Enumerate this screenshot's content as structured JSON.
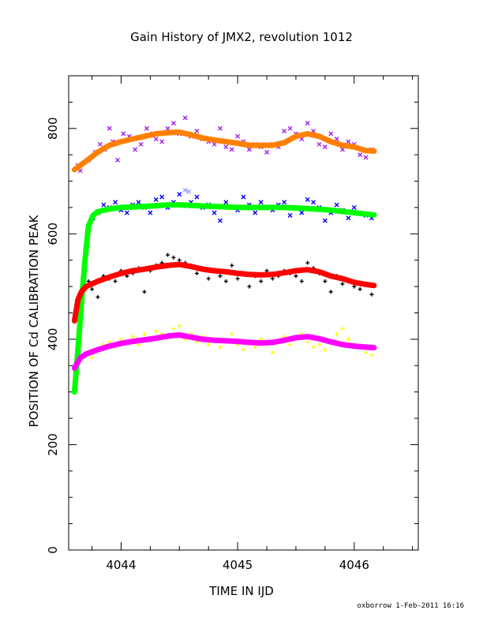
{
  "chart_data": {
    "type": "scatter",
    "title": "Gain History of JMX2, revolution 1012",
    "xlabel": "TIME IN IJD",
    "ylabel": "POSITION OF Cd CALIBRATION PEAK",
    "xlim": [
      4043.55,
      4046.55
    ],
    "ylim": [
      0,
      900
    ],
    "xticks": [
      4044,
      4045,
      4046
    ],
    "yticks": [
      0,
      200,
      400,
      600,
      800
    ],
    "grid": false,
    "footer": "oxborrow  1-Feb-2011 16:16",
    "series": [
      {
        "kind": "points",
        "color": "#a020f0",
        "marker": "x",
        "x": [
          4043.63,
          4043.65,
          4043.72,
          4043.78,
          4043.82,
          4043.86,
          4043.9,
          4043.93,
          4043.97,
          4044.02,
          4044.07,
          4044.12,
          4044.17,
          4044.22,
          4044.27,
          4044.3,
          4044.35,
          4044.4,
          4044.45,
          4044.5,
          4044.55,
          4044.6,
          4044.65,
          4044.7,
          4044.75,
          4044.8,
          4044.85,
          4044.9,
          4044.95,
          4045.0,
          4045.05,
          4045.1,
          4045.15,
          4045.2,
          4045.25,
          4045.3,
          4045.35,
          4045.4,
          4045.45,
          4045.5,
          4045.55,
          4045.6,
          4045.65,
          4045.7,
          4045.75,
          4045.8,
          4045.85,
          4045.9,
          4045.95,
          4046.0,
          4046.05,
          4046.1,
          4046.15
        ],
        "y": [
          730,
          720,
          740,
          755,
          770,
          760,
          800,
          775,
          740,
          790,
          785,
          760,
          770,
          800,
          790,
          780,
          775,
          800,
          810,
          790,
          820,
          785,
          795,
          780,
          775,
          770,
          800,
          765,
          760,
          785,
          775,
          760,
          770,
          765,
          755,
          770,
          765,
          795,
          800,
          790,
          780,
          810,
          795,
          770,
          765,
          790,
          780,
          760,
          775,
          770,
          750,
          745,
          760
        ]
      },
      {
        "kind": "points",
        "color": "#0000ff",
        "marker": "x",
        "x": [
          4043.72,
          4043.76,
          4043.8,
          4043.85,
          4043.9,
          4043.95,
          4044.0,
          4044.05,
          4044.1,
          4044.15,
          4044.2,
          4044.25,
          4044.3,
          4044.35,
          4044.4,
          4044.45,
          4044.5,
          4044.55,
          4044.6,
          4044.65,
          4044.7,
          4044.75,
          4044.8,
          4044.85,
          4044.9,
          4044.95,
          4045.0,
          4045.05,
          4045.1,
          4045.15,
          4045.2,
          4045.25,
          4045.3,
          4045.35,
          4045.4,
          4045.45,
          4045.5,
          4045.55,
          4045.6,
          4045.65,
          4045.7,
          4045.75,
          4045.8,
          4045.85,
          4045.9,
          4045.95,
          4046.0,
          4046.05,
          4046.1,
          4046.15
        ],
        "y": [
          615,
          630,
          640,
          655,
          650,
          660,
          645,
          640,
          655,
          660,
          650,
          640,
          665,
          670,
          650,
          660,
          675,
          655,
          660,
          670,
          650,
          655,
          640,
          625,
          660,
          650,
          645,
          670,
          655,
          640,
          660,
          650,
          645,
          655,
          660,
          635,
          650,
          640,
          665,
          660,
          650,
          625,
          640,
          655,
          645,
          630,
          650,
          640,
          635,
          630
        ]
      },
      {
        "kind": "points",
        "color": "#000000",
        "marker": "+",
        "x": [
          4043.64,
          4043.66,
          4043.68,
          4043.72,
          4043.75,
          4043.8,
          4043.85,
          4043.9,
          4043.95,
          4044.0,
          4044.05,
          4044.1,
          4044.15,
          4044.2,
          4044.25,
          4044.3,
          4044.35,
          4044.4,
          4044.45,
          4044.5,
          4044.55,
          4044.6,
          4044.65,
          4044.7,
          4044.75,
          4044.8,
          4044.85,
          4044.9,
          4044.95,
          4045.0,
          4045.05,
          4045.1,
          4045.15,
          4045.2,
          4045.25,
          4045.3,
          4045.35,
          4045.4,
          4045.45,
          4045.5,
          4045.55,
          4045.6,
          4045.65,
          4045.7,
          4045.75,
          4045.8,
          4045.85,
          4045.9,
          4045.95,
          4046.0,
          4046.05,
          4046.1,
          4046.15
        ],
        "y": [
          460,
          490,
          500,
          510,
          495,
          480,
          520,
          515,
          510,
          530,
          520,
          525,
          535,
          490,
          530,
          540,
          545,
          560,
          555,
          550,
          545,
          540,
          525,
          535,
          515,
          530,
          520,
          510,
          540,
          515,
          525,
          500,
          520,
          510,
          530,
          515,
          520,
          530,
          525,
          520,
          510,
          545,
          535,
          525,
          510,
          490,
          520,
          505,
          510,
          500,
          495,
          505,
          485
        ]
      },
      {
        "kind": "points",
        "color": "#ffff00",
        "marker": "+",
        "x": [
          4043.65,
          4043.7,
          4043.75,
          4043.8,
          4043.85,
          4043.9,
          4043.95,
          4044.0,
          4044.05,
          4044.1,
          4044.15,
          4044.2,
          4044.25,
          4044.3,
          4044.35,
          4044.4,
          4044.45,
          4044.5,
          4044.55,
          4044.6,
          4044.65,
          4044.7,
          4044.75,
          4044.8,
          4044.85,
          4044.9,
          4044.95,
          4045.0,
          4045.05,
          4045.1,
          4045.15,
          4045.2,
          4045.25,
          4045.3,
          4045.35,
          4045.4,
          4045.45,
          4045.5,
          4045.55,
          4045.6,
          4045.65,
          4045.7,
          4045.75,
          4045.8,
          4045.85,
          4045.9,
          4045.95,
          4046.0,
          4046.05,
          4046.1,
          4046.15
        ],
        "y": [
          360,
          375,
          365,
          380,
          390,
          395,
          385,
          400,
          395,
          405,
          390,
          410,
          400,
          415,
          410,
          405,
          420,
          425,
          400,
          410,
          395,
          405,
          390,
          400,
          385,
          395,
          410,
          390,
          380,
          395,
          385,
          400,
          390,
          375,
          395,
          405,
          390,
          400,
          410,
          395,
          385,
          390,
          380,
          395,
          410,
          420,
          400,
          390,
          385,
          375,
          370
        ]
      },
      {
        "kind": "points",
        "color": "#00ff00",
        "marker": "+",
        "x": [
          4043.615,
          4043.625,
          4043.635,
          4043.645,
          4043.655,
          4043.665,
          4043.675,
          4043.685,
          4043.695,
          4043.705,
          4043.715,
          4043.725
        ],
        "y": [
          305,
          340,
          380,
          420,
          455,
          490,
          520,
          550,
          575,
          595,
          610,
          620
        ]
      },
      {
        "kind": "points",
        "color": "#a0a0ff",
        "marker": "x",
        "x": [
          4044.55,
          4044.58
        ],
        "y": [
          683,
          680
        ]
      },
      {
        "kind": "curve",
        "color": "#ff8000",
        "x": [
          4043.6,
          4043.7,
          4043.8,
          4043.9,
          4044.0,
          4044.1,
          4044.2,
          4044.3,
          4044.4,
          4044.5,
          4044.6,
          4044.7,
          4044.8,
          4044.9,
          4045.0,
          4045.1,
          4045.2,
          4045.3,
          4045.4,
          4045.5,
          4045.6,
          4045.7,
          4045.8,
          4045.9,
          4046.0,
          4046.1,
          4046.17
        ],
        "y": [
          722,
          738,
          755,
          768,
          775,
          780,
          785,
          790,
          792,
          793,
          788,
          782,
          778,
          775,
          772,
          768,
          768,
          768,
          773,
          785,
          790,
          785,
          775,
          768,
          765,
          758,
          757
        ]
      },
      {
        "kind": "curve",
        "color": "#00ff00",
        "x": [
          4043.6,
          4043.63,
          4043.66,
          4043.69,
          4043.72,
          4043.76,
          4043.8,
          4043.9,
          4044.0,
          4044.2,
          4044.4,
          4044.5,
          4044.6,
          4044.8,
          4045.0,
          4045.2,
          4045.4,
          4045.6,
          4045.8,
          4046.0,
          4046.17
        ],
        "y": [
          300,
          380,
          470,
          550,
          615,
          635,
          642,
          647,
          650,
          652,
          655,
          655,
          654,
          652,
          650,
          650,
          650,
          648,
          645,
          640,
          636
        ]
      },
      {
        "kind": "curve",
        "color": "#ff0000",
        "x": [
          4043.6,
          4043.63,
          4043.66,
          4043.7,
          4043.8,
          4043.9,
          4044.0,
          4044.1,
          4044.2,
          4044.3,
          4044.4,
          4044.5,
          4044.6,
          4044.7,
          4044.8,
          4044.9,
          4045.0,
          4045.1,
          4045.2,
          4045.3,
          4045.4,
          4045.5,
          4045.6,
          4045.7,
          4045.8,
          4045.9,
          4046.0,
          4046.1,
          4046.17
        ],
        "y": [
          435,
          475,
          490,
          500,
          510,
          518,
          525,
          530,
          533,
          537,
          540,
          542,
          538,
          533,
          530,
          528,
          525,
          523,
          522,
          523,
          526,
          530,
          532,
          528,
          520,
          515,
          508,
          504,
          502
        ]
      },
      {
        "kind": "curve",
        "color": "#ff00ff",
        "x": [
          4043.6,
          4043.65,
          4043.7,
          4043.8,
          4043.9,
          4044.0,
          4044.1,
          4044.2,
          4044.3,
          4044.4,
          4044.5,
          4044.6,
          4044.7,
          4044.8,
          4044.9,
          4045.0,
          4045.1,
          4045.2,
          4045.3,
          4045.4,
          4045.5,
          4045.6,
          4045.7,
          4045.8,
          4045.9,
          4046.0,
          4046.1,
          4046.17
        ],
        "y": [
          345,
          365,
          372,
          380,
          387,
          392,
          396,
          399,
          402,
          406,
          408,
          404,
          400,
          398,
          397,
          396,
          394,
          393,
          394,
          398,
          403,
          405,
          401,
          395,
          390,
          387,
          385,
          384
        ]
      }
    ]
  }
}
